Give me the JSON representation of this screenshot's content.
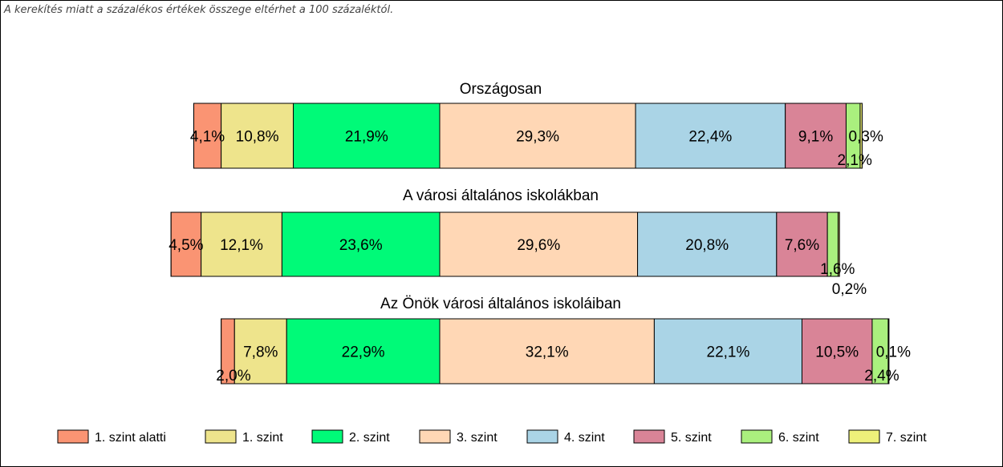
{
  "note": "A kerekítés miatt a  százalékos értékek összege eltérhet a 100 százaléktól.",
  "chart_data": {
    "type": "bar",
    "orientation": "horizontal",
    "stacked": "100-percent",
    "legend_position": "bottom",
    "grid": false,
    "levels": [
      "1. szint alatti",
      "1. szint",
      "2. szint",
      "3. szint",
      "4. szint",
      "5. szint",
      "6. szint",
      "7. szint"
    ],
    "colors": [
      "#FA9473",
      "#EEE48C",
      "#00FA78",
      "#FFD7B5",
      "#AAD4E6",
      "#D98497",
      "#AAF07E",
      "#EEF07A"
    ],
    "rows": [
      {
        "title": "Országosan",
        "values": [
          4.1,
          10.8,
          21.9,
          29.3,
          22.4,
          9.1,
          2.1,
          0.3
        ],
        "labels": [
          "4,1%",
          "10,8%",
          "21,9%",
          "29,3%",
          "22,4%",
          "9,1%",
          "2,1%",
          "0,3%"
        ]
      },
      {
        "title": "A városi általános iskolákban",
        "values": [
          4.5,
          12.1,
          23.6,
          29.6,
          20.8,
          7.6,
          1.6,
          0.2
        ],
        "labels": [
          "4,5%",
          "12,1%",
          "23,6%",
          "29,6%",
          "20,8%",
          "7,6%",
          "1,6%",
          "0,2%"
        ]
      },
      {
        "title": "Az Önök városi általános iskoláiban",
        "values": [
          2.0,
          7.8,
          22.9,
          32.1,
          22.1,
          10.5,
          2.4,
          0.1
        ],
        "labels": [
          "2,0%",
          "7,8%",
          "22,9%",
          "32,1%",
          "22,1%",
          "10,5%",
          "2,4%",
          "0,1%"
        ]
      }
    ]
  }
}
